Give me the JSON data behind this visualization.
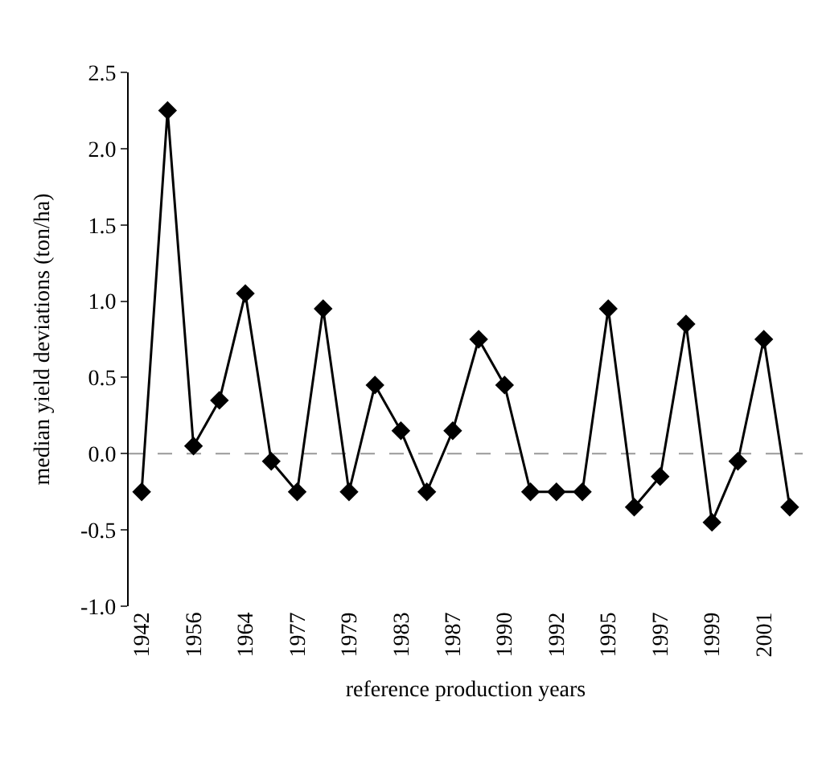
{
  "chart_data": {
    "type": "line",
    "xlabel": "reference production years",
    "ylabel": "median yield deviations (ton/ha)",
    "categories": [
      "1942",
      null,
      "1956",
      null,
      "1964",
      null,
      "1977",
      null,
      "1979",
      null,
      "1983",
      null,
      "1987",
      null,
      "1990",
      null,
      "1992",
      null,
      "1995",
      null,
      "1997",
      null,
      "1999",
      null,
      "2001",
      null
    ],
    "series": [
      {
        "color": "#000000",
        "values": [
          -0.25,
          2.25,
          0.05,
          0.35,
          1.05,
          -0.05,
          -0.25,
          0.95,
          -0.25,
          0.45,
          0.15,
          -0.25,
          0.15,
          0.75,
          0.45,
          -0.25,
          -0.25,
          -0.25,
          0.95,
          -0.35,
          -0.15,
          0.85,
          -0.45,
          -0.05,
          0.75,
          -0.35
        ]
      }
    ],
    "ylim": [
      -1.0,
      2.5
    ],
    "yticks": [
      {
        "value": -1.0,
        "label": "-1.0"
      },
      {
        "value": -0.5,
        "label": "-0.5"
      },
      {
        "value": 0.0,
        "label": "0.0"
      },
      {
        "value": 0.5,
        "label": "0.5"
      },
      {
        "value": 1.0,
        "label": "1.0"
      },
      {
        "value": 1.5,
        "label": "1.5"
      },
      {
        "value": 2.0,
        "label": "2.0"
      },
      {
        "value": 2.5,
        "label": "2.5"
      }
    ],
    "ref_lines": [
      {
        "axis": "y",
        "value": 0,
        "color": "#999999",
        "line_style": "dashed"
      }
    ],
    "marker": "diamond",
    "line_style": "solid",
    "grid": false,
    "legend": false
  }
}
